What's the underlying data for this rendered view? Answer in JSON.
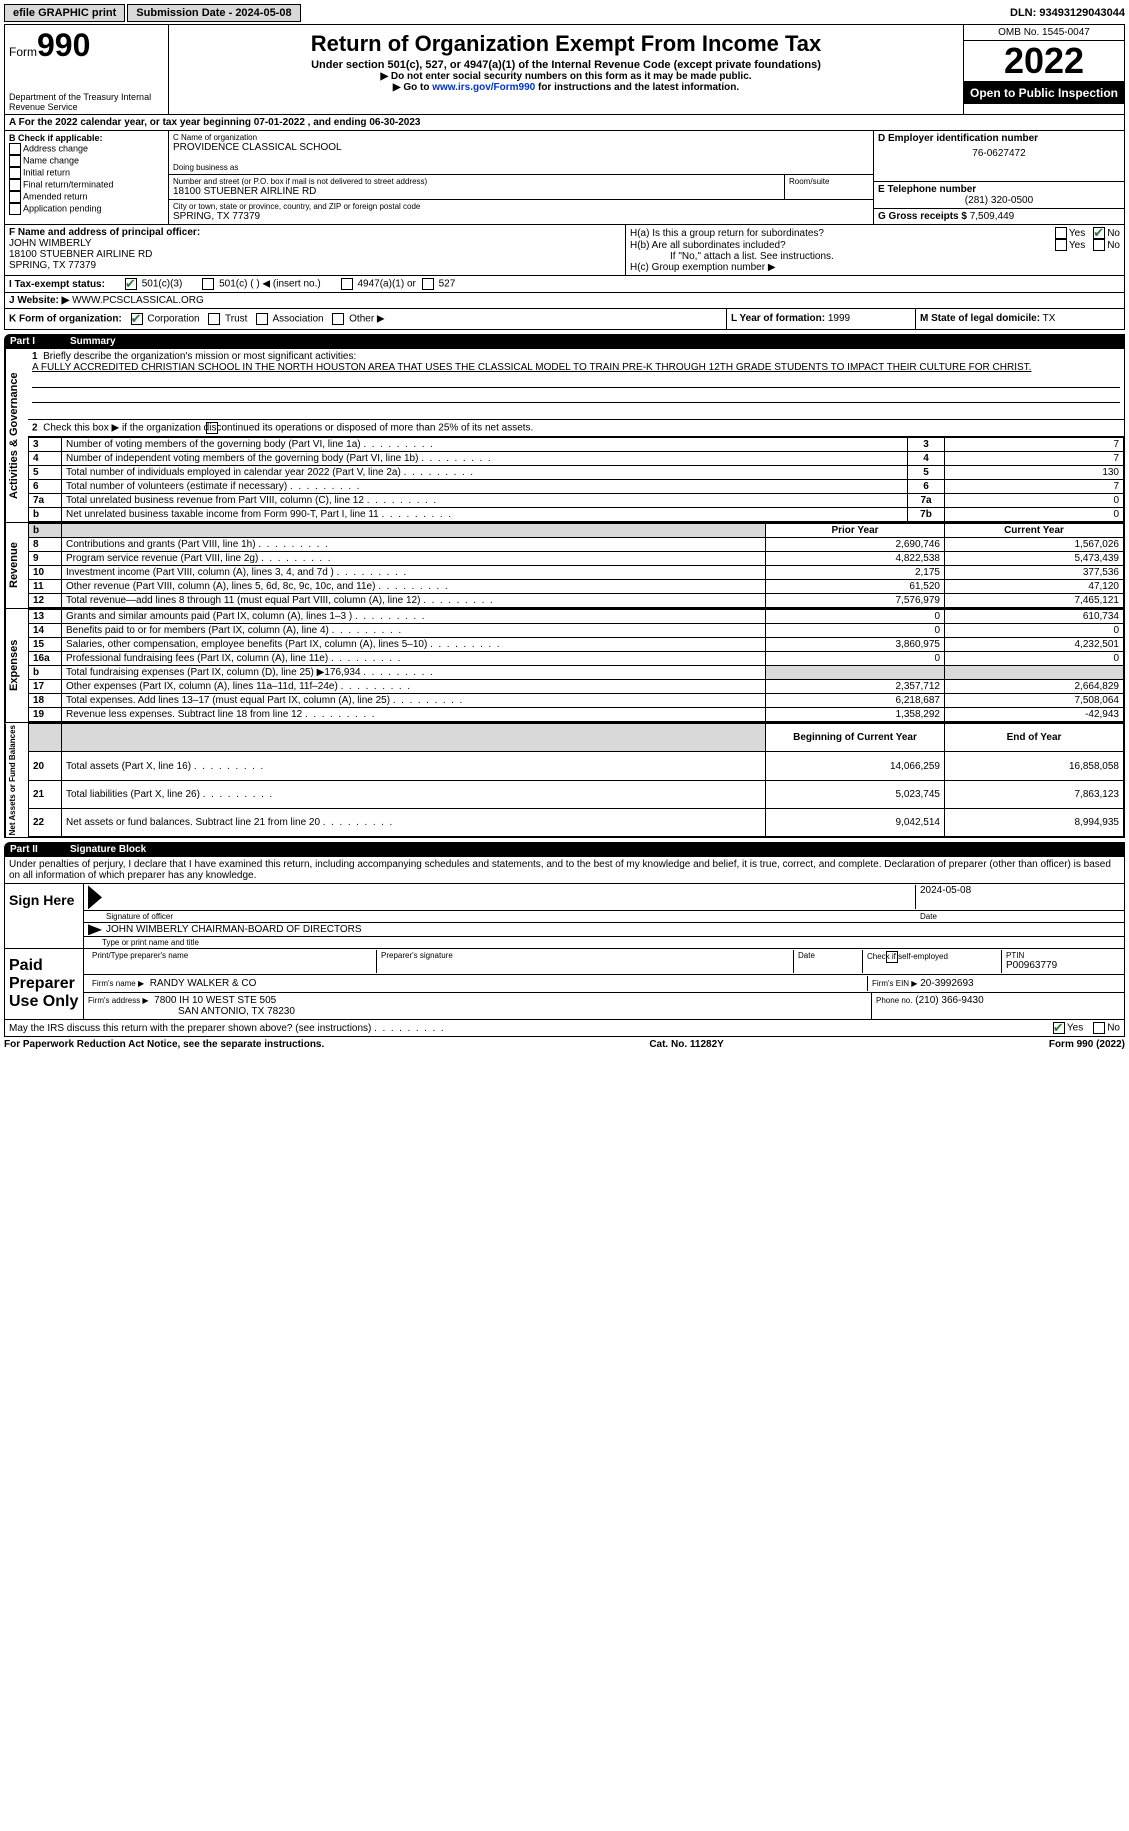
{
  "topbar": {
    "efile": "efile GRAPHIC print",
    "submission_label": "Submission Date - 2024-05-08",
    "dln": "DLN: 93493129043044"
  },
  "header": {
    "form_prefix": "Form",
    "form_num": "990",
    "title": "Return of Organization Exempt From Income Tax",
    "sub1": "Under section 501(c), 527, or 4947(a)(1) of the Internal Revenue Code (except private foundations)",
    "sub2": "▶ Do not enter social security numbers on this form as it may be made public.",
    "sub3_pre": "▶ Go to ",
    "sub3_link": "www.irs.gov/Form990",
    "sub3_post": " for instructions and the latest information.",
    "dept": "Department of the Treasury\nInternal Revenue Service",
    "omb": "OMB No. 1545-0047",
    "year": "2022",
    "open": "Open to Public Inspection"
  },
  "a_line": "A For the 2022 calendar year, or tax year beginning 07-01-2022   , and ending 06-30-2023",
  "b": {
    "title": "B Check if applicable:",
    "items": [
      "Address change",
      "Name change",
      "Initial return",
      "Final return/terminated",
      "Amended return",
      "Application pending"
    ]
  },
  "c": {
    "label_name": "C Name of organization",
    "org": "PROVIDENCE CLASSICAL SCHOOL",
    "dba_label": "Doing business as",
    "street_label": "Number and street (or P.O. box if mail is not delivered to street address)",
    "room_label": "Room/suite",
    "street": "18100 STUEBNER AIRLINE RD",
    "city_label": "City or town, state or province, country, and ZIP or foreign postal code",
    "city": "SPRING, TX  77379"
  },
  "d": {
    "label": "D Employer identification number",
    "value": "76-0627472"
  },
  "e": {
    "label": "E Telephone number",
    "value": "(281) 320-0500"
  },
  "g": {
    "label": "G Gross receipts $",
    "value": "7,509,449"
  },
  "f": {
    "label": "F  Name and address of principal officer:",
    "name": "JOHN WIMBERLY",
    "addr1": "18100 STUEBNER AIRLINE RD",
    "addr2": "SPRING, TX  77379"
  },
  "h": {
    "a": "H(a)  Is this a group return for subordinates?",
    "b": "H(b)  Are all subordinates included?",
    "b_note": "If \"No,\" attach a list. See instructions.",
    "c": "H(c)  Group exemption number ▶"
  },
  "i": {
    "label": "I   Tax-exempt status:",
    "o1": "501(c)(3)",
    "o2": "501(c) (  ) ◀ (insert no.)",
    "o3": "4947(a)(1) or",
    "o4": "527"
  },
  "j": {
    "label": "J   Website: ▶",
    "value": "WWW.PCSCLASSICAL.ORG"
  },
  "k": {
    "label": "K Form of organization:",
    "o1": "Corporation",
    "o2": "Trust",
    "o3": "Association",
    "o4": "Other ▶"
  },
  "l": {
    "label": "L Year of formation:",
    "value": "1999"
  },
  "m": {
    "label": "M State of legal domicile:",
    "value": "TX"
  },
  "part1": {
    "title": "Part I",
    "subtitle": "Summary",
    "line1_label": "Briefly describe the organization's mission or most significant activities:",
    "line1_text": "A FULLY ACCREDITED CHRISTIAN SCHOOL IN THE NORTH HOUSTON AREA THAT USES THE CLASSICAL MODEL TO TRAIN PRE-K THROUGH 12TH GRADE STUDENTS TO IMPACT THEIR CULTURE FOR CHRIST.",
    "line2": "Check this box ▶       if the organization discontinued its operations or disposed of more than 25% of its net assets.",
    "lines_ag": [
      {
        "n": "3",
        "t": "Number of voting members of the governing body (Part VI, line 1a)",
        "box": "3",
        "v": "7"
      },
      {
        "n": "4",
        "t": "Number of independent voting members of the governing body (Part VI, line 1b)",
        "box": "4",
        "v": "7"
      },
      {
        "n": "5",
        "t": "Total number of individuals employed in calendar year 2022 (Part V, line 2a)",
        "box": "5",
        "v": "130"
      },
      {
        "n": "6",
        "t": "Total number of volunteers (estimate if necessary)",
        "box": "6",
        "v": "7"
      },
      {
        "n": "7a",
        "t": "Total unrelated business revenue from Part VIII, column (C), line 12",
        "box": "7a",
        "v": "0"
      },
      {
        "n": "b",
        "t": "Net unrelated business taxable income from Form 990-T, Part I, line 11",
        "box": "7b",
        "v": "0"
      }
    ],
    "col_prior": "Prior Year",
    "col_current": "Current Year",
    "revenue": [
      {
        "n": "8",
        "t": "Contributions and grants (Part VIII, line 1h)",
        "p": "2,690,746",
        "c": "1,567,026"
      },
      {
        "n": "9",
        "t": "Program service revenue (Part VIII, line 2g)",
        "p": "4,822,538",
        "c": "5,473,439"
      },
      {
        "n": "10",
        "t": "Investment income (Part VIII, column (A), lines 3, 4, and 7d )",
        "p": "2,175",
        "c": "377,536"
      },
      {
        "n": "11",
        "t": "Other revenue (Part VIII, column (A), lines 5, 6d, 8c, 9c, 10c, and 11e)",
        "p": "61,520",
        "c": "47,120"
      },
      {
        "n": "12",
        "t": "Total revenue—add lines 8 through 11 (must equal Part VIII, column (A), line 12)",
        "p": "7,576,979",
        "c": "7,465,121"
      }
    ],
    "expenses": [
      {
        "n": "13",
        "t": "Grants and similar amounts paid (Part IX, column (A), lines 1–3 )",
        "p": "0",
        "c": "610,734"
      },
      {
        "n": "14",
        "t": "Benefits paid to or for members (Part IX, column (A), line 4)",
        "p": "0",
        "c": "0"
      },
      {
        "n": "15",
        "t": "Salaries, other compensation, employee benefits (Part IX, column (A), lines 5–10)",
        "p": "3,860,975",
        "c": "4,232,501"
      },
      {
        "n": "16a",
        "t": "Professional fundraising fees (Part IX, column (A), line 11e)",
        "p": "0",
        "c": "0"
      },
      {
        "n": "b",
        "t": "Total fundraising expenses (Part IX, column (D), line 25) ▶176,934",
        "p": "",
        "c": "",
        "shade": true
      },
      {
        "n": "17",
        "t": "Other expenses (Part IX, column (A), lines 11a–11d, 11f–24e)",
        "p": "2,357,712",
        "c": "2,664,829"
      },
      {
        "n": "18",
        "t": "Total expenses. Add lines 13–17 (must equal Part IX, column (A), line 25)",
        "p": "6,218,687",
        "c": "7,508,064"
      },
      {
        "n": "19",
        "t": "Revenue less expenses. Subtract line 18 from line 12",
        "p": "1,358,292",
        "c": "-42,943"
      }
    ],
    "col_begin": "Beginning of Current Year",
    "col_end": "End of Year",
    "netassets": [
      {
        "n": "20",
        "t": "Total assets (Part X, line 16)",
        "p": "14,066,259",
        "c": "16,858,058"
      },
      {
        "n": "21",
        "t": "Total liabilities (Part X, line 26)",
        "p": "5,023,745",
        "c": "7,863,123"
      },
      {
        "n": "22",
        "t": "Net assets or fund balances. Subtract line 21 from line 20",
        "p": "9,042,514",
        "c": "8,994,935"
      }
    ],
    "side_ag": "Activities & Governance",
    "side_rev": "Revenue",
    "side_exp": "Expenses",
    "side_net": "Net Assets or Fund Balances"
  },
  "part2": {
    "title": "Part II",
    "subtitle": "Signature Block",
    "declaration": "Under penalties of perjury, I declare that I have examined this return, including accompanying schedules and statements, and to the best of my knowledge and belief, it is true, correct, and complete. Declaration of preparer (other than officer) is based on all information of which preparer has any knowledge.",
    "sign_here": "Sign Here",
    "sig_officer": "Signature of officer",
    "sig_date": "2024-05-08",
    "date_lbl": "Date",
    "officer_name": "JOHN WIMBERLY CHAIRMAN-BOARD OF DIRECTORS",
    "type_name": "Type or print name and title",
    "paid": "Paid Preparer Use Only",
    "prep_name_lbl": "Print/Type preparer's name",
    "prep_sig_lbl": "Preparer's signature",
    "prep_date_lbl": "Date",
    "check_self": "Check          if self-employed",
    "ptin_lbl": "PTIN",
    "ptin": "P00963779",
    "firm_name_lbl": "Firm's name    ▶",
    "firm_name": "RANDY WALKER & CO",
    "firm_ein_lbl": "Firm's EIN ▶",
    "firm_ein": "20-3992693",
    "firm_addr_lbl": "Firm's address ▶",
    "firm_addr1": "7800 IH 10 WEST STE 505",
    "firm_addr2": "SAN ANTONIO, TX  78230",
    "phone_lbl": "Phone no.",
    "phone": "(210) 366-9430",
    "discuss": "May the IRS discuss this return with the preparer shown above? (see instructions)",
    "yes": "Yes",
    "no": "No"
  },
  "footer": {
    "left": "For Paperwork Reduction Act Notice, see the separate instructions.",
    "mid": "Cat. No. 11282Y",
    "right": "Form 990 (2022)"
  }
}
